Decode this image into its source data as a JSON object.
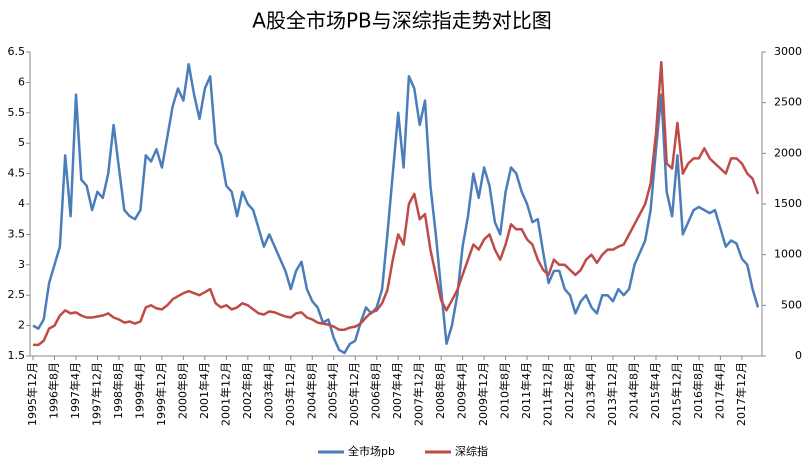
{
  "chart_data": {
    "type": "line",
    "title": "A股全市场PB与深综指走势对比图",
    "categories": [
      "1995年12月",
      null,
      null,
      null,
      "1996年8月",
      null,
      null,
      null,
      "1997年4月",
      null,
      null,
      null,
      "1997年12月",
      null,
      null,
      null,
      "1998年8月",
      null,
      null,
      null,
      "1999年4月",
      null,
      null,
      null,
      "1999年12月",
      null,
      null,
      null,
      "2000年8月",
      null,
      null,
      null,
      "2001年4月",
      null,
      null,
      null,
      "2001年12月",
      null,
      null,
      null,
      "2002年8月",
      null,
      null,
      null,
      "2003年4月",
      null,
      null,
      null,
      "2003年12月",
      null,
      null,
      null,
      "2004年8月",
      null,
      null,
      null,
      "2005年4月",
      null,
      null,
      null,
      "2005年12月",
      null,
      null,
      null,
      "2006年8月",
      null,
      null,
      null,
      "2007年4月",
      null,
      null,
      null,
      "2007年12月",
      null,
      null,
      null,
      "2008年8月",
      null,
      null,
      null,
      "2009年4月",
      null,
      null,
      null,
      "2009年12月",
      null,
      null,
      null,
      "2010年8月",
      null,
      null,
      null,
      "2011年4月",
      null,
      null,
      null,
      "2011年12月",
      null,
      null,
      null,
      "2012年8月",
      null,
      null,
      null,
      "2013年4月",
      null,
      null,
      null,
      "2013年12月",
      null,
      null,
      null,
      "2014年8月",
      null,
      null,
      null,
      "2015年4月",
      null,
      null,
      null,
      "2015年12月",
      null,
      null,
      null,
      "2016年8月",
      null,
      null,
      null,
      "2017年4月",
      null,
      null,
      null,
      "2017年12月",
      null,
      null,
      null
    ],
    "series": [
      {
        "name": "全市场pb",
        "color": "#4a7ebb",
        "axis": "y",
        "values": [
          2.0,
          1.95,
          2.1,
          2.7,
          3.0,
          3.3,
          4.8,
          3.8,
          5.8,
          4.4,
          4.3,
          3.9,
          4.2,
          4.1,
          4.5,
          5.3,
          4.6,
          3.9,
          3.8,
          3.75,
          3.9,
          4.8,
          4.7,
          4.9,
          4.6,
          5.1,
          5.6,
          5.9,
          5.7,
          6.3,
          5.8,
          5.4,
          5.9,
          6.1,
          5.0,
          4.8,
          4.3,
          4.2,
          3.8,
          4.2,
          4.0,
          3.9,
          3.6,
          3.3,
          3.5,
          3.3,
          3.1,
          2.9,
          2.6,
          2.9,
          3.05,
          2.6,
          2.4,
          2.3,
          2.05,
          2.1,
          1.8,
          1.6,
          1.55,
          1.7,
          1.75,
          2.05,
          2.3,
          2.2,
          2.3,
          2.6,
          3.5,
          4.5,
          5.5,
          4.6,
          6.1,
          5.9,
          5.3,
          5.7,
          4.3,
          3.5,
          2.6,
          1.7,
          2.0,
          2.5,
          3.3,
          3.8,
          4.5,
          4.1,
          4.6,
          4.3,
          3.7,
          3.5,
          4.2,
          4.6,
          4.5,
          4.2,
          4.0,
          3.7,
          3.75,
          3.2,
          2.7,
          2.9,
          2.9,
          2.6,
          2.5,
          2.2,
          2.4,
          2.5,
          2.3,
          2.2,
          2.5,
          2.5,
          2.4,
          2.6,
          2.5,
          2.6,
          3.0,
          3.2,
          3.4,
          3.9,
          4.9,
          5.8,
          4.2,
          3.8,
          4.8,
          3.5,
          3.7,
          3.9,
          3.95,
          3.9,
          3.85,
          3.9,
          3.6,
          3.3,
          3.4,
          3.35,
          3.1,
          3.0,
          2.6,
          2.3
        ]
      },
      {
        "name": "深综指",
        "color": "#be4b48",
        "axis": "y2",
        "values": [
          110,
          110,
          150,
          270,
          300,
          400,
          450,
          420,
          430,
          400,
          380,
          380,
          390,
          400,
          420,
          380,
          360,
          330,
          340,
          320,
          340,
          480,
          500,
          470,
          460,
          500,
          560,
          590,
          620,
          640,
          620,
          600,
          630,
          660,
          520,
          480,
          500,
          460,
          480,
          520,
          500,
          460,
          420,
          410,
          440,
          430,
          410,
          390,
          380,
          420,
          430,
          380,
          360,
          330,
          320,
          310,
          290,
          260,
          260,
          280,
          290,
          320,
          380,
          430,
          450,
          520,
          650,
          950,
          1200,
          1100,
          1500,
          1600,
          1350,
          1400,
          1050,
          800,
          550,
          450,
          550,
          650,
          800,
          950,
          1100,
          1050,
          1150,
          1200,
          1050,
          950,
          1100,
          1300,
          1250,
          1250,
          1150,
          1100,
          950,
          850,
          800,
          950,
          900,
          900,
          850,
          800,
          850,
          950,
          1000,
          920,
          1000,
          1050,
          1050,
          1080,
          1100,
          1200,
          1300,
          1400,
          1500,
          1700,
          2200,
          2900,
          1900,
          1850,
          2300,
          1800,
          1900,
          1950,
          1950,
          2050,
          1950,
          1900,
          1850,
          1800,
          1950,
          1950,
          1900,
          1800,
          1750,
          1600
        ]
      }
    ],
    "ylim": [
      1.5,
      6.5
    ],
    "yticks": [
      1.5,
      2,
      2.5,
      3,
      3.5,
      4,
      4.5,
      5,
      5.5,
      6,
      6.5
    ],
    "y2lim": [
      0,
      3000
    ],
    "y2ticks": [
      0,
      500,
      1000,
      1500,
      2000,
      2500,
      3000
    ],
    "grid": false,
    "legend": "bottom"
  }
}
